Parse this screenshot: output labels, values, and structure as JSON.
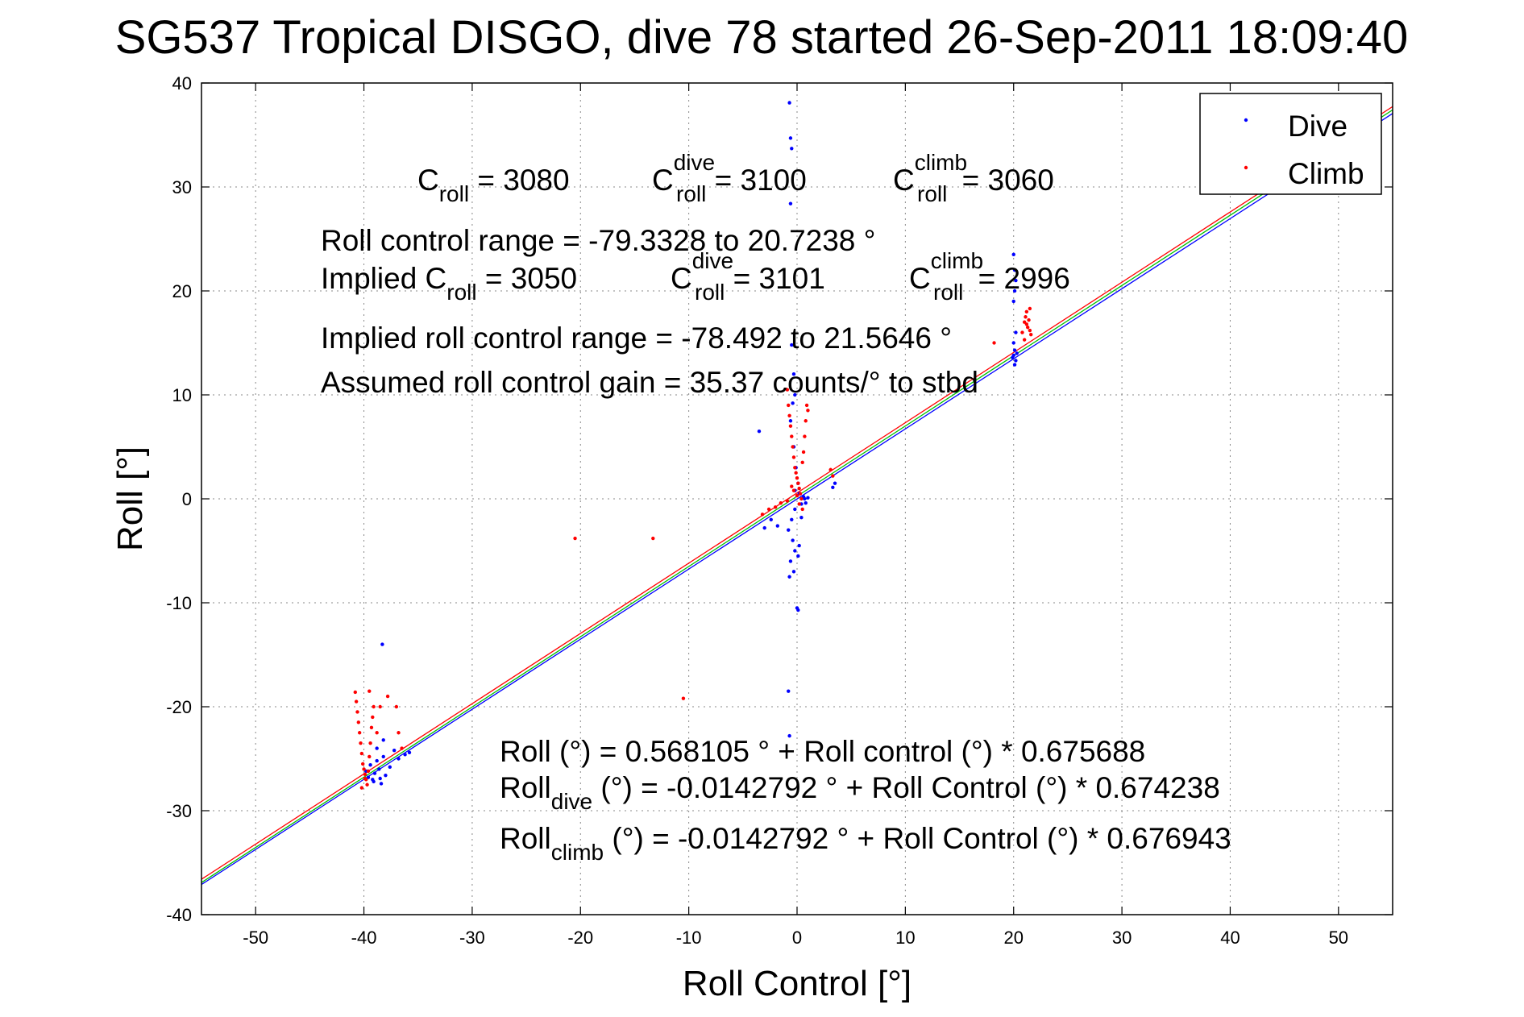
{
  "chart_data": {
    "type": "scatter",
    "title": "SG537 Tropical DISGO, dive 78 started 26-Sep-2011 18:09:40",
    "xlabel": "Roll Control [°]",
    "ylabel": "Roll [°]",
    "xlim": [
      -55,
      55
    ],
    "ylim": [
      -40,
      40
    ],
    "xticks": [
      -50,
      -40,
      -30,
      -20,
      -10,
      0,
      10,
      20,
      30,
      40,
      50
    ],
    "yticks": [
      -40,
      -30,
      -20,
      -10,
      0,
      10,
      20,
      30,
      40
    ],
    "grid": true,
    "legend_position": "top-right",
    "series": [
      {
        "name": "Dive",
        "color": "#0000ff",
        "points": [
          [
            -39.8,
            -26.2
          ],
          [
            -39.6,
            -26.8
          ],
          [
            -39.4,
            -25.6
          ],
          [
            -39.2,
            -27.0
          ],
          [
            -39.0,
            -26.4
          ],
          [
            -38.8,
            -25.2
          ],
          [
            -38.6,
            -26.0
          ],
          [
            -38.4,
            -27.4
          ],
          [
            -38.2,
            -24.8
          ],
          [
            -38.0,
            -26.6
          ],
          [
            -38.8,
            -24.0
          ],
          [
            -38.2,
            -23.2
          ],
          [
            -37.6,
            -25.8
          ],
          [
            -37.2,
            -24.2
          ],
          [
            -36.8,
            -25.0
          ],
          [
            -36.2,
            -24.6
          ],
          [
            -35.8,
            -24.4
          ],
          [
            -38.3,
            -14.0
          ],
          [
            -39.1,
            -27.2
          ],
          [
            -38.5,
            -26.9
          ],
          [
            -3.5,
            6.5
          ],
          [
            -3.0,
            -2.8
          ],
          [
            -2.4,
            -2.0
          ],
          [
            -1.8,
            -2.6
          ],
          [
            -0.7,
            38.1
          ],
          [
            -0.6,
            34.7
          ],
          [
            -0.5,
            33.7
          ],
          [
            -0.6,
            28.4
          ],
          [
            -0.5,
            14.8
          ],
          [
            -0.3,
            12.0
          ],
          [
            -0.2,
            10.0
          ],
          [
            -0.4,
            9.2
          ],
          [
            -0.6,
            7.5
          ],
          [
            -0.3,
            5.0
          ],
          [
            -0.1,
            3.0
          ],
          [
            0.1,
            1.5
          ],
          [
            0.2,
            0.5
          ],
          [
            0.4,
            -0.5
          ],
          [
            0.6,
            0.2
          ],
          [
            0.8,
            -0.4
          ],
          [
            1.0,
            0.1
          ],
          [
            -0.2,
            -1.0
          ],
          [
            -0.5,
            -2.0
          ],
          [
            -0.8,
            -3.0
          ],
          [
            -0.4,
            -4.0
          ],
          [
            -0.2,
            -5.0
          ],
          [
            -0.6,
            -6.0
          ],
          [
            -0.3,
            -7.0
          ],
          [
            -0.7,
            -7.5
          ],
          [
            0.1,
            -5.5
          ],
          [
            0.2,
            -4.5
          ],
          [
            0.0,
            -10.5
          ],
          [
            0.1,
            -10.7
          ],
          [
            -0.8,
            -18.5
          ],
          [
            -0.7,
            -22.8
          ],
          [
            3.3,
            1.1
          ],
          [
            3.5,
            1.5
          ],
          [
            -0.2,
            0.8
          ],
          [
            0.4,
            -1.8
          ],
          [
            0.7,
            0.0
          ],
          [
            20.0,
            23.5
          ],
          [
            20.1,
            22.0
          ],
          [
            20.2,
            21.0
          ],
          [
            20.1,
            20.0
          ],
          [
            20.0,
            19.0
          ],
          [
            20.2,
            16.0
          ],
          [
            20.0,
            15.0
          ],
          [
            20.1,
            14.3
          ],
          [
            20.0,
            13.8
          ],
          [
            20.2,
            13.3
          ],
          [
            20.1,
            12.9
          ],
          [
            19.9,
            13.6
          ],
          [
            20.3,
            14.0
          ]
        ]
      },
      {
        "name": "Climb",
        "color": "#ff0000",
        "points": [
          [
            -40.8,
            -18.6
          ],
          [
            -40.7,
            -19.5
          ],
          [
            -40.6,
            -20.5
          ],
          [
            -40.5,
            -21.5
          ],
          [
            -40.4,
            -22.5
          ],
          [
            -40.3,
            -23.5
          ],
          [
            -40.2,
            -24.5
          ],
          [
            -40.1,
            -25.5
          ],
          [
            -40.0,
            -26.0
          ],
          [
            -39.9,
            -26.5
          ],
          [
            -39.8,
            -27.0
          ],
          [
            -39.7,
            -27.5
          ],
          [
            -39.6,
            -26.2
          ],
          [
            -39.5,
            -24.8
          ],
          [
            -39.4,
            -23.5
          ],
          [
            -39.3,
            -22.0
          ],
          [
            -39.2,
            -21.0
          ],
          [
            -39.1,
            -20.0
          ],
          [
            -39.5,
            -18.5
          ],
          [
            -38.8,
            -22.5
          ],
          [
            -38.5,
            -20.0
          ],
          [
            -37.8,
            -19.0
          ],
          [
            -37.0,
            -20.0
          ],
          [
            -36.8,
            -22.5
          ],
          [
            -36.5,
            -24.0
          ],
          [
            -40.2,
            -27.8
          ],
          [
            -39.9,
            -26.9
          ],
          [
            -20.5,
            -3.8
          ],
          [
            -13.3,
            -3.8
          ],
          [
            -10.5,
            -19.2
          ],
          [
            -3.2,
            -1.5
          ],
          [
            -2.6,
            -1.0
          ],
          [
            -2.0,
            -0.8
          ],
          [
            -1.5,
            -0.4
          ],
          [
            -0.9,
            10.5
          ],
          [
            -0.8,
            9.0
          ],
          [
            -0.7,
            8.0
          ],
          [
            -0.6,
            7.0
          ],
          [
            -0.5,
            6.0
          ],
          [
            -0.4,
            5.0
          ],
          [
            -0.3,
            4.0
          ],
          [
            -0.2,
            3.0
          ],
          [
            -0.1,
            2.5
          ],
          [
            0.0,
            2.0
          ],
          [
            0.1,
            1.5
          ],
          [
            0.2,
            1.0
          ],
          [
            0.3,
            0.5
          ],
          [
            0.4,
            0.0
          ],
          [
            0.5,
            3.5
          ],
          [
            0.6,
            4.5
          ],
          [
            0.7,
            6.0
          ],
          [
            0.8,
            7.5
          ],
          [
            0.9,
            9.0
          ],
          [
            1.0,
            8.5
          ],
          [
            -0.5,
            1.2
          ],
          [
            -0.3,
            0.8
          ],
          [
            0.0,
            0.3
          ],
          [
            0.2,
            -0.5
          ],
          [
            0.5,
            -1.0
          ],
          [
            -0.9,
            -0.2
          ],
          [
            3.1,
            2.8
          ],
          [
            3.3,
            2.2
          ],
          [
            18.2,
            15.0
          ],
          [
            20.8,
            16.0
          ],
          [
            21.0,
            17.0
          ],
          [
            21.1,
            17.5
          ],
          [
            21.2,
            18.0
          ],
          [
            21.3,
            16.5
          ],
          [
            21.4,
            17.2
          ],
          [
            21.5,
            18.3
          ],
          [
            21.6,
            15.8
          ],
          [
            21.2,
            16.8
          ],
          [
            21.0,
            15.3
          ],
          [
            21.5,
            16.2
          ]
        ]
      }
    ],
    "fit_lines": [
      {
        "color": "#ff0000",
        "intercept": 0.568105,
        "slope": 0.675688
      },
      {
        "color": "#00c000",
        "intercept": 0.25,
        "slope": 0.675688
      },
      {
        "color": "#0000ff",
        "intercept": -0.0142792,
        "slope": 0.674238
      }
    ]
  },
  "legend": {
    "dive_label": "Dive",
    "climb_label": "Climb"
  },
  "annotations": {
    "line1": {
      "c": "C",
      "roll_sub": "roll",
      "roll_val": " = 3080",
      "dive_sup": "dive",
      "dive_val": " = 3100",
      "climb_sup": "climb",
      "climb_val": " = 3060"
    },
    "range1": "Roll control range = -79.3328 to 20.7238 °",
    "implied": {
      "prefix": "Implied C",
      "roll_sub": "roll",
      "roll_val": " = 3050",
      "c": "C",
      "dive_sup": "dive",
      "dive_val": " = 3101",
      "climb_sup": "climb",
      "climb_val": " = 2996"
    },
    "range2": "Implied roll control range = -78.492 to 21.5646 °",
    "gain": "Assumed roll control gain = 35.37 counts/° to stbd",
    "fit1": "Roll (°) = 0.568105 ° + Roll control (°) * 0.675688",
    "fit2": {
      "prefix": "Roll",
      "sub": "dive",
      "rest": " (°) = -0.0142792 ° + Roll Control (°) * 0.674238"
    },
    "fit3": {
      "prefix": "Roll",
      "sub": "climb",
      "rest": " (°) = -0.0142792 ° + Roll Control (°) * 0.676943"
    }
  }
}
